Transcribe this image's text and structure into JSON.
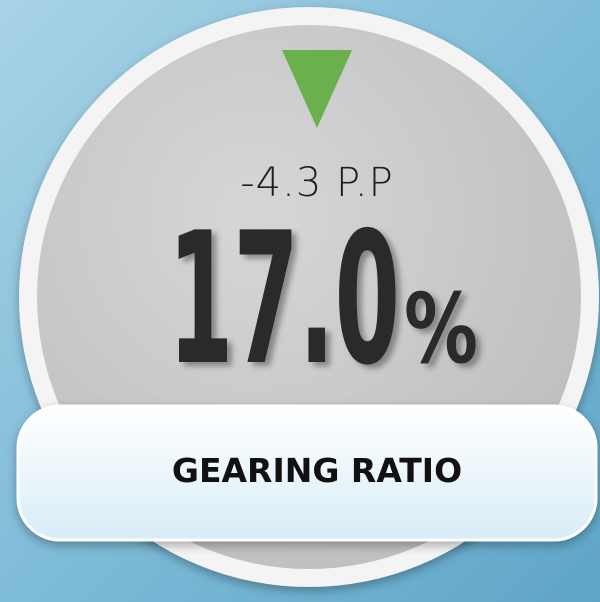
{
  "widget": {
    "change": "-4.3 P.P",
    "value": "17.0",
    "unit": "%",
    "label": "GEARING RATIO"
  }
}
